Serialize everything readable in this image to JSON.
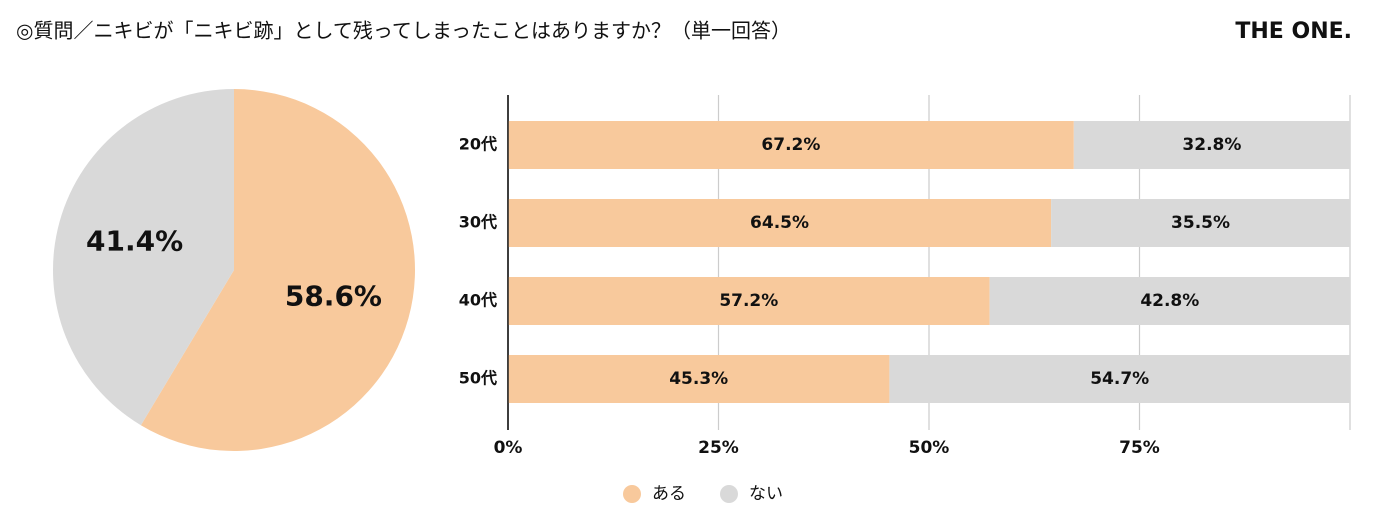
{
  "title": "◎質問／ニキビが「ニキビ跡」として残ってしまったことはありますか？（単一回答）",
  "brand": "THE ONE.",
  "chart_data": [
    {
      "type": "pie",
      "values": [
        58.6,
        41.4
      ],
      "value_labels": [
        "58.6%",
        "41.4%"
      ],
      "colors": [
        "#f8c99c",
        "#d9d9d9"
      ]
    },
    {
      "type": "bar",
      "orientation": "horizontal",
      "stacked": true,
      "categories": [
        "20代",
        "30代",
        "40代",
        "50代"
      ],
      "series": [
        {
          "name": "ある",
          "color": "#f8c99c",
          "values": [
            67.2,
            64.5,
            57.2,
            45.3
          ],
          "value_labels": [
            "67.2%",
            "64.5%",
            "57.2%",
            "45.3%"
          ]
        },
        {
          "name": "ない",
          "color": "#d9d9d9",
          "values": [
            32.8,
            35.5,
            42.8,
            54.7
          ],
          "value_labels": [
            "32.8%",
            "35.5%",
            "42.8%",
            "54.7%"
          ]
        }
      ],
      "xlim": [
        0,
        100
      ],
      "xticks": [
        {
          "value": 0,
          "label": "0%"
        },
        {
          "value": 25,
          "label": "25%"
        },
        {
          "value": 50,
          "label": "50%"
        },
        {
          "value": 75,
          "label": "75%"
        }
      ],
      "grid": true,
      "legend": "bottom"
    }
  ]
}
